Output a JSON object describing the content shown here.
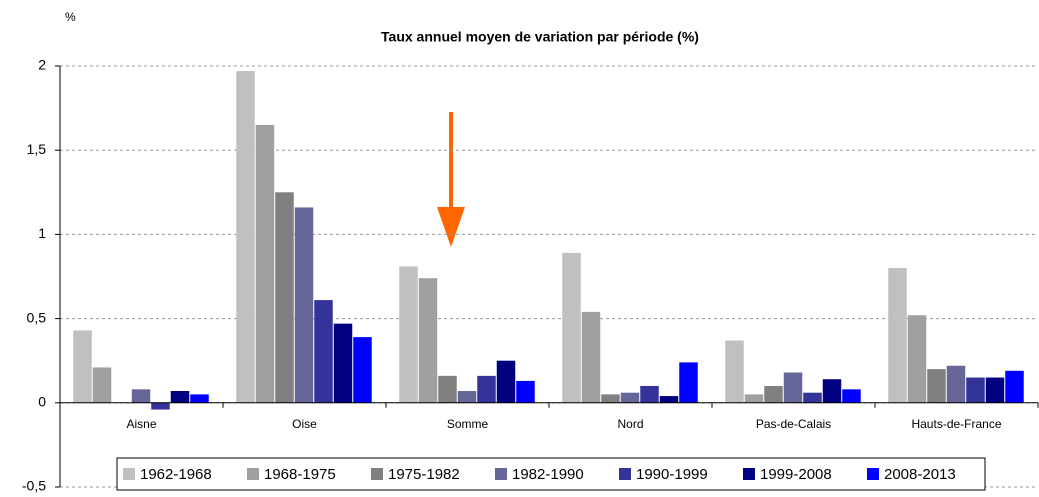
{
  "chart_data": {
    "type": "bar",
    "title": "Taux annuel moyen de variation par période (%)",
    "y_unit": "%",
    "categories": [
      "Aisne",
      "Oise",
      "Somme",
      "Nord",
      "Pas-de-Calais",
      "Hauts-de-France"
    ],
    "series": [
      {
        "name": "1962-1968",
        "color": "#c0c0c0",
        "values": [
          0.43,
          1.97,
          0.81,
          0.89,
          0.37,
          0.8
        ]
      },
      {
        "name": "1968-1975",
        "color": "#a0a0a0",
        "values": [
          0.21,
          1.65,
          0.74,
          0.54,
          0.05,
          0.52
        ]
      },
      {
        "name": "1975-1982",
        "color": "#808080",
        "values": [
          0,
          1.25,
          0.16,
          0.05,
          0.1,
          0.2
        ]
      },
      {
        "name": "1982-1990",
        "color": "#666699",
        "values": [
          0.08,
          1.16,
          0.07,
          0.06,
          0.18,
          0.22
        ]
      },
      {
        "name": "1990-1999",
        "color": "#333399",
        "values": [
          -0.04,
          0.61,
          0.16,
          0.1,
          0.06,
          0.15
        ]
      },
      {
        "name": "1999-2008",
        "color": "#000080",
        "values": [
          0.07,
          0.47,
          0.25,
          0.04,
          0.14,
          0.15
        ]
      },
      {
        "name": "2008-2013",
        "color": "#0000ff",
        "values": [
          0.05,
          0.39,
          0.13,
          0.24,
          0.08,
          0.19
        ]
      }
    ],
    "ylim": [
      -0.5,
      2
    ],
    "yticks": [
      {
        "value": -0.5,
        "label": "-0,5"
      },
      0,
      {
        "value": 0.5,
        "label": "0,5"
      },
      1,
      {
        "value": 1.5,
        "label": "1,5"
      },
      2
    ],
    "grid": true,
    "legend": "bottom"
  }
}
